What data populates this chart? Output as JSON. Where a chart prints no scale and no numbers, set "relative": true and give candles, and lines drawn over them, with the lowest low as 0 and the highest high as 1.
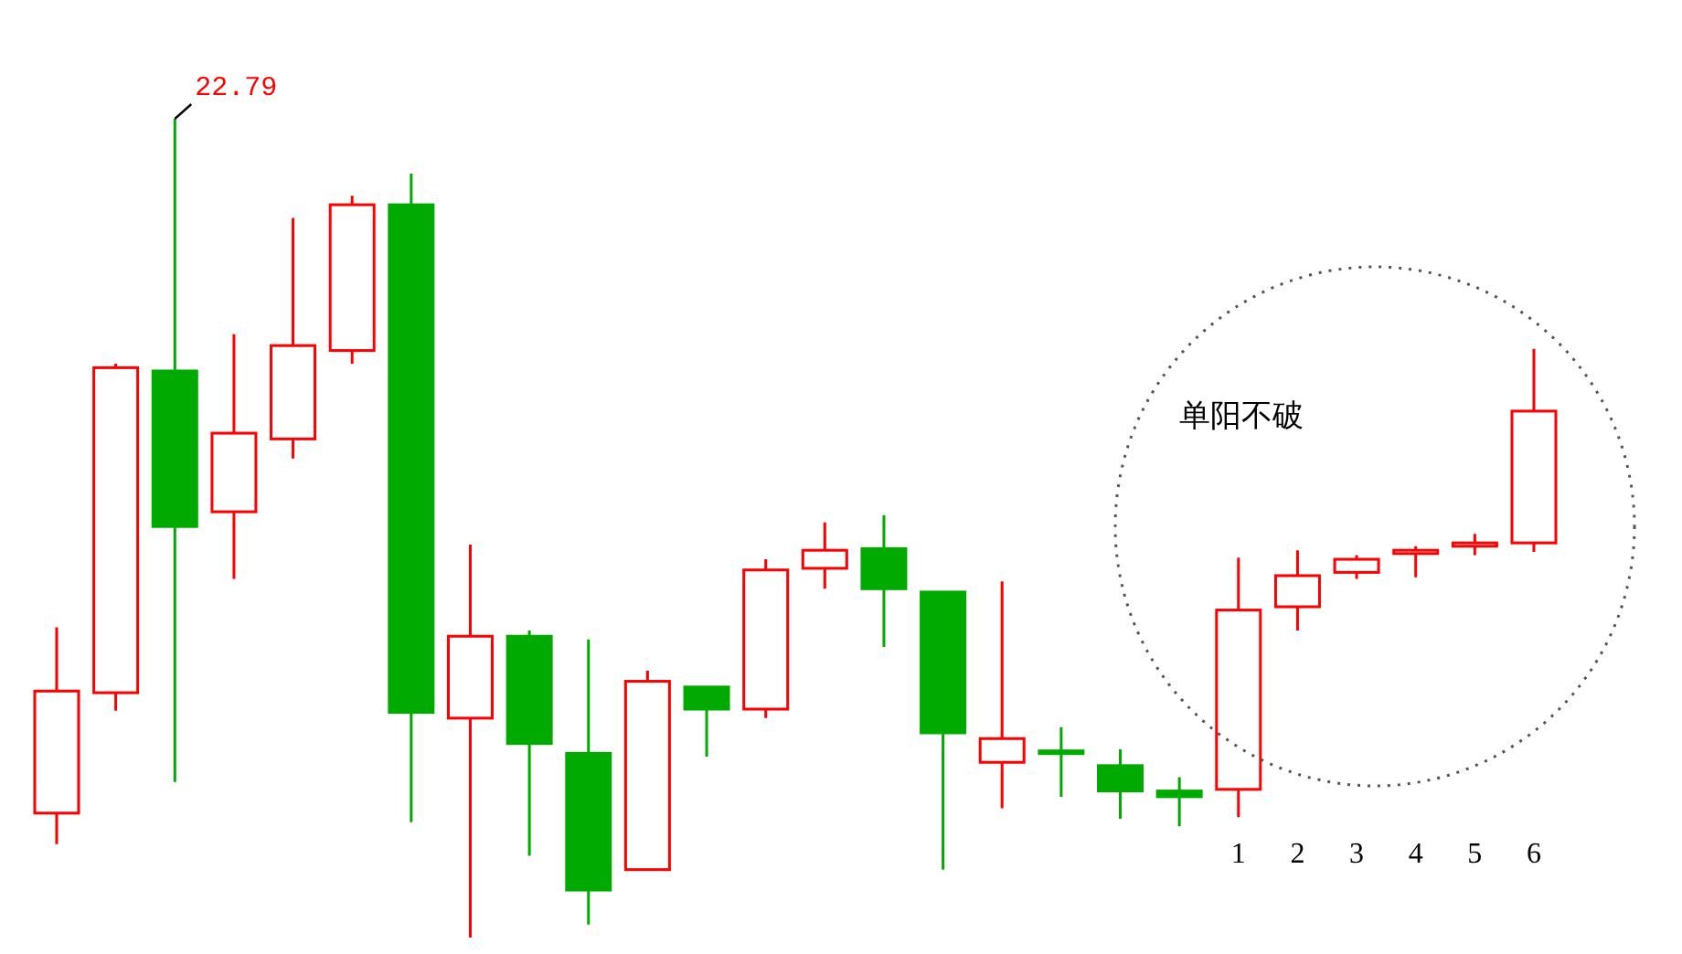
{
  "chart_data": {
    "type": "candlestick",
    "relative": true,
    "categories": [
      null,
      null,
      null,
      null,
      null,
      null,
      null,
      null,
      null,
      null,
      null,
      null,
      null,
      null,
      null,
      null,
      null,
      null,
      null,
      null,
      "1",
      "2",
      "3",
      "4",
      "5",
      "6"
    ],
    "ohlc": [
      [
        0.152,
        0.379,
        0.114,
        0.301
      ],
      [
        0.299,
        0.701,
        0.277,
        0.696
      ],
      [
        0.692,
        1,
        0.19,
        0.502
      ],
      [
        0.52,
        0.737,
        0.438,
        0.616
      ],
      [
        0.609,
        0.879,
        0.585,
        0.723
      ],
      [
        0.717,
        0.906,
        0.701,
        0.895
      ],
      [
        0.895,
        0.933,
        0.141,
        0.275
      ],
      [
        0.268,
        0.48,
        0,
        0.368
      ],
      [
        0.368,
        0.375,
        0.1,
        0.237
      ],
      [
        0.225,
        0.364,
        0.016,
        0.058
      ],
      [
        0.083,
        0.326,
        0.083,
        0.313
      ],
      [
        0.306,
        0.306,
        0.221,
        0.279
      ],
      [
        0.279,
        0.462,
        0.268,
        0.449
      ],
      [
        0.451,
        0.507,
        0.426,
        0.473
      ],
      [
        0.475,
        0.516,
        0.355,
        0.426
      ],
      [
        0.422,
        0.422,
        0.083,
        0.25
      ],
      [
        0.214,
        0.435,
        0.158,
        0.243
      ],
      [
        0.228,
        0.257,
        0.172,
        0.225
      ],
      [
        0.21,
        0.23,
        0.145,
        0.179
      ],
      [
        0.179,
        0.196,
        0.136,
        0.172
      ],
      [
        0.181,
        0.464,
        0.147,
        0.4
      ],
      [
        0.404,
        0.473,
        0.375,
        0.442
      ],
      [
        0.446,
        0.467,
        0.438,
        0.462
      ],
      [
        0.469,
        0.478,
        0.44,
        0.473
      ],
      [
        0.478,
        0.493,
        0.467,
        0.482
      ],
      [
        0.482,
        0.719,
        0.471,
        0.643
      ]
    ],
    "colors": [
      "#ff0000",
      "#ff0000",
      "#00aa00",
      "#ff0000",
      "#ff0000",
      "#ff0000",
      "#00aa00",
      "#ff0000",
      "#00aa00",
      "#00aa00",
      "#ff0000",
      "#00aa00",
      "#ff0000",
      "#ff0000",
      "#00aa00",
      "#00aa00",
      "#ff0000",
      "#00aa00",
      "#00aa00",
      "#00aa00",
      "#ff0000",
      "#ff0000",
      "#ff0000",
      "#ff0000",
      "#ff0000",
      "#ff0000"
    ],
    "annotations": [
      "22.79",
      "单阳不破"
    ]
  }
}
